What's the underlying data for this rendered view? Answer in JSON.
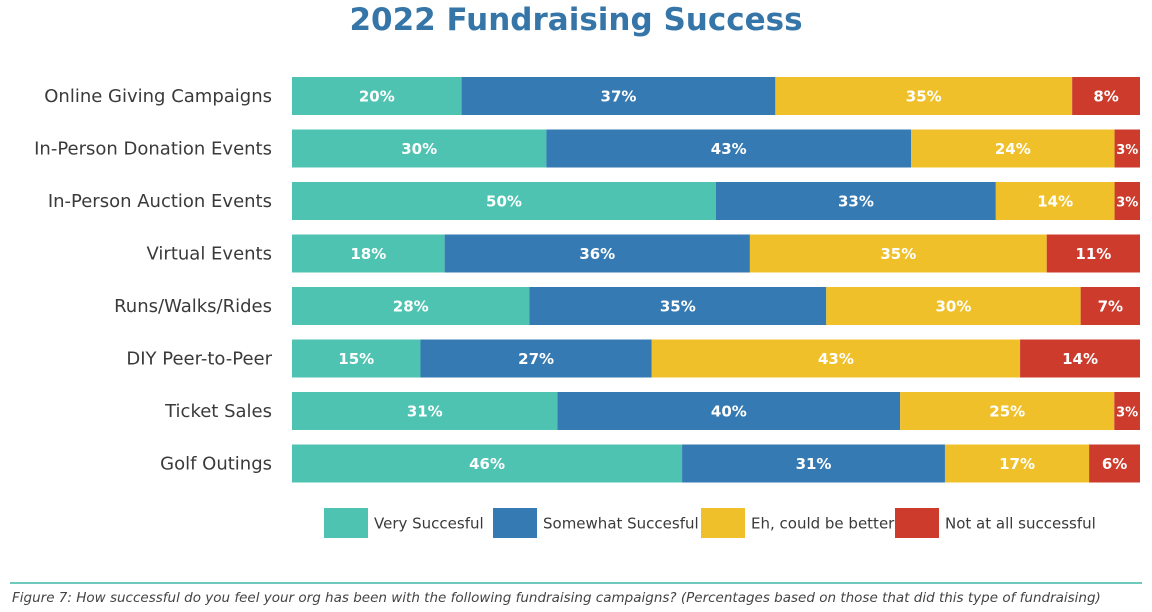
{
  "chart_data": {
    "type": "bar",
    "orientation": "horizontal",
    "stacked": true,
    "title": "2022 Fundraising Success",
    "caption": "Figure 7: How successful do you feel your org has been with the following fundraising campaigns? (Percentages based on those that did this type of fundraising)",
    "categories": [
      "Online Giving Campaigns",
      "In-Person Donation Events",
      "In-Person Auction Events",
      "Virtual Events",
      "Runs/Walks/Rides",
      "DIY Peer-to-Peer",
      "Ticket Sales",
      "Golf Outings"
    ],
    "series": [
      {
        "name": "Very Succesful",
        "color": "#4fc3b2",
        "values": [
          20,
          30,
          50,
          18,
          28,
          15,
          31,
          46
        ]
      },
      {
        "name": "Somewhat Succesful",
        "color": "#357ab2",
        "values": [
          37,
          43,
          33,
          36,
          35,
          27,
          40,
          31
        ]
      },
      {
        "name": "Eh, could be better",
        "color": "#f0c02b",
        "values": [
          35,
          24,
          14,
          35,
          30,
          43,
          25,
          17
        ]
      },
      {
        "name": "Not at all successful",
        "color": "#cc3b2b",
        "values": [
          8,
          3,
          3,
          11,
          7,
          14,
          3,
          6
        ]
      }
    ],
    "value_suffix": "%",
    "legend_position": "bottom",
    "grid": false
  }
}
